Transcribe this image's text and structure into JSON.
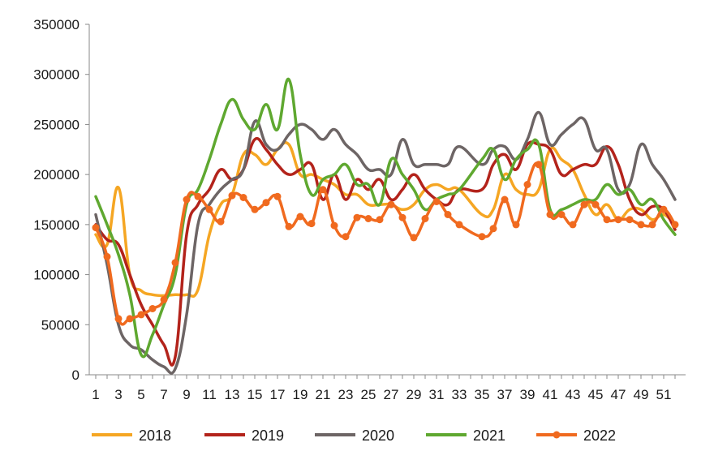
{
  "chart_data": {
    "type": "line",
    "title": "",
    "xlabel": "",
    "ylabel": "",
    "ylim": [
      0,
      350000
    ],
    "yticks": [
      0,
      50000,
      100000,
      150000,
      200000,
      250000,
      300000,
      350000
    ],
    "ytick_labels": [
      "0",
      "50000",
      "100000",
      "150000",
      "200000",
      "250000",
      "300000",
      "350000"
    ],
    "xlim": [
      1,
      52
    ],
    "xticks": [
      1,
      3,
      5,
      7,
      9,
      11,
      13,
      15,
      17,
      19,
      21,
      23,
      25,
      27,
      29,
      31,
      33,
      35,
      37,
      39,
      41,
      43,
      45,
      47,
      49,
      51
    ],
    "xtick_labels": [
      "1",
      "3",
      "5",
      "7",
      "9",
      "11",
      "13",
      "15",
      "17",
      "19",
      "21",
      "23",
      "25",
      "27",
      "29",
      "31",
      "33",
      "35",
      "37",
      "39",
      "41",
      "43",
      "45",
      "47",
      "49",
      "51"
    ],
    "grid": false,
    "legend_position": "bottom",
    "x": [
      1,
      2,
      3,
      4,
      5,
      6,
      7,
      8,
      9,
      10,
      11,
      12,
      13,
      14,
      15,
      16,
      17,
      18,
      19,
      20,
      21,
      22,
      23,
      24,
      25,
      26,
      27,
      28,
      29,
      30,
      31,
      32,
      33,
      35,
      36,
      37,
      38,
      39,
      40,
      41,
      42,
      43,
      44,
      45,
      46,
      47,
      48,
      49,
      50,
      51,
      52
    ],
    "series": [
      {
        "name": "2018",
        "color": "#F5A623",
        "marker": false,
        "values": [
          140000,
          130000,
          187000,
          100000,
          84000,
          80000,
          79000,
          80000,
          80000,
          85000,
          140000,
          170000,
          180000,
          220000,
          220000,
          210000,
          225000,
          230000,
          200000,
          200000,
          195000,
          190000,
          180000,
          180000,
          170000,
          170000,
          170000,
          165000,
          170000,
          185000,
          190000,
          185000,
          185000,
          160000,
          165000,
          200000,
          185000,
          180000,
          185000,
          225000,
          215000,
          205000,
          180000,
          160000,
          170000,
          155000,
          165000,
          165000,
          155000,
          160000,
          150000
        ]
      },
      {
        "name": "2019",
        "color": "#B3231B",
        "marker": false,
        "values": [
          150000,
          135000,
          130000,
          100000,
          70000,
          50000,
          30000,
          18000,
          140000,
          170000,
          185000,
          205000,
          195000,
          205000,
          235000,
          225000,
          210000,
          200000,
          205000,
          210000,
          175000,
          200000,
          175000,
          195000,
          185000,
          195000,
          175000,
          185000,
          200000,
          185000,
          175000,
          170000,
          185000,
          185000,
          210000,
          220000,
          205000,
          230000,
          230000,
          225000,
          200000,
          205000,
          210000,
          210000,
          228000,
          210000,
          175000,
          160000,
          168000,
          165000,
          145000
        ]
      },
      {
        "name": "2020",
        "color": "#6D6565",
        "marker": false,
        "values": [
          160000,
          110000,
          50000,
          30000,
          25000,
          15000,
          8000,
          6000,
          60000,
          150000,
          170000,
          185000,
          195000,
          205000,
          253000,
          230000,
          225000,
          240000,
          250000,
          245000,
          235000,
          245000,
          230000,
          220000,
          205000,
          205000,
          200000,
          235000,
          210000,
          210000,
          210000,
          210000,
          228000,
          210000,
          225000,
          228000,
          215000,
          235000,
          262000,
          230000,
          240000,
          250000,
          255000,
          225000,
          225000,
          185000,
          190000,
          230000,
          210000,
          195000,
          175000
        ]
      },
      {
        "name": "2021",
        "color": "#5FA830",
        "marker": false,
        "values": [
          178000,
          150000,
          120000,
          80000,
          20000,
          40000,
          70000,
          100000,
          170000,
          185000,
          215000,
          250000,
          275000,
          255000,
          245000,
          270000,
          245000,
          295000,
          220000,
          180000,
          195000,
          200000,
          210000,
          190000,
          190000,
          170000,
          215000,
          200000,
          185000,
          165000,
          175000,
          180000,
          185000,
          215000,
          225000,
          195000,
          215000,
          225000,
          230000,
          165000,
          165000,
          170000,
          175000,
          175000,
          190000,
          180000,
          185000,
          170000,
          175000,
          155000,
          140000
        ]
      },
      {
        "name": "2022",
        "color": "#F06A1F",
        "marker": true,
        "values": [
          147000,
          118000,
          56000,
          56000,
          60000,
          66000,
          75000,
          112000,
          175000,
          178000,
          165000,
          153000,
          179000,
          177000,
          165000,
          172000,
          178000,
          148000,
          158000,
          151000,
          185000,
          149000,
          138000,
          157000,
          156000,
          155000,
          170000,
          157000,
          137000,
          156000,
          173000,
          160000,
          150000,
          138000,
          146000,
          175000,
          150000,
          190000,
          210000,
          160000,
          160000,
          150000,
          170000,
          170000,
          155000,
          155000,
          155000,
          150000,
          150000,
          165000,
          150000
        ]
      }
    ]
  }
}
